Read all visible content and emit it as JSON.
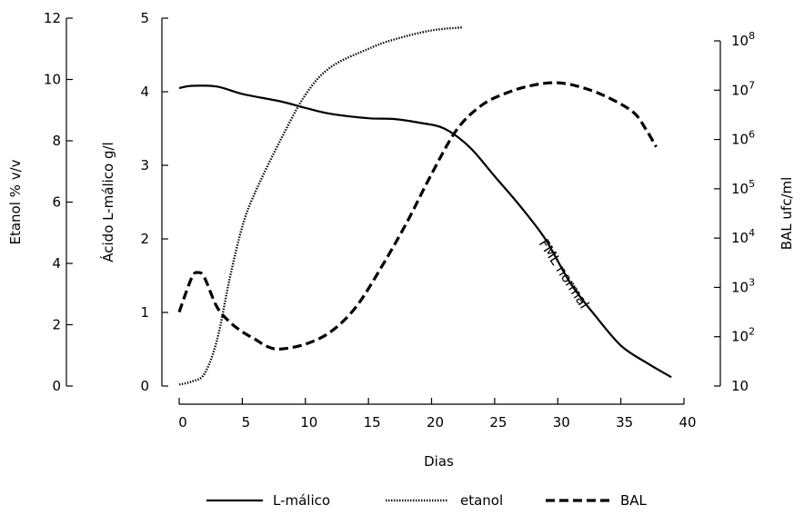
{
  "chart_data": {
    "type": "line",
    "xlabel": "Dias",
    "x_ticks": [
      0,
      5,
      10,
      15,
      20,
      25,
      30,
      35,
      40
    ],
    "xlim": [
      0,
      40
    ],
    "axes": {
      "etanol": {
        "label": "Etanol % v/v",
        "ylim": [
          0,
          12
        ],
        "ticks": [
          0,
          2,
          4,
          6,
          8,
          10,
          12
        ]
      },
      "malico": {
        "label": "Ácido L-málico g/l",
        "ylim": [
          0,
          5
        ],
        "ticks": [
          0,
          1,
          2,
          3,
          4,
          5
        ]
      },
      "bal": {
        "label": "BAL ufc/ml",
        "scale": "log",
        "ylim": [
          1,
          8
        ],
        "tick_labels": [
          {
            "base": "10",
            "exp": ""
          },
          {
            "base": "10",
            "exp": "2"
          },
          {
            "base": "10",
            "exp": "3"
          },
          {
            "base": "10",
            "exp": "4"
          },
          {
            "base": "10",
            "exp": "5"
          },
          {
            "base": "10",
            "exp": "6"
          },
          {
            "base": "10",
            "exp": "7"
          },
          {
            "base": "10",
            "exp": "8"
          }
        ]
      }
    },
    "series": [
      {
        "name": "L-málico",
        "axis": "malico",
        "style": "solid",
        "x": [
          0,
          1,
          3,
          5,
          8,
          10,
          12,
          15,
          17,
          19,
          21,
          23,
          25,
          27,
          29,
          31,
          33,
          35,
          37,
          39
        ],
        "y": [
          4.05,
          4.08,
          4.07,
          3.97,
          3.87,
          3.78,
          3.7,
          3.64,
          3.63,
          3.58,
          3.5,
          3.25,
          2.85,
          2.45,
          2.0,
          1.4,
          0.95,
          0.55,
          0.32,
          0.12
        ]
      },
      {
        "name": "etanol",
        "axis": "etanol",
        "style": "dotted",
        "x": [
          0,
          1,
          2,
          3,
          4,
          5,
          6,
          8,
          10,
          12,
          15,
          17,
          20,
          22.5
        ],
        "y": [
          0.05,
          0.15,
          0.4,
          1.5,
          3.5,
          5.2,
          6.3,
          8.0,
          9.5,
          10.4,
          11.0,
          11.3,
          11.6,
          11.7
        ]
      },
      {
        "name": "BAL",
        "axis": "bal",
        "style": "dashed",
        "x": [
          0,
          1,
          1.5,
          2,
          3,
          4,
          5,
          6,
          7,
          8,
          10,
          12,
          14,
          16,
          18,
          20,
          22,
          24,
          26,
          28,
          30,
          32,
          34,
          36,
          37,
          37.8
        ],
        "y": [
          2.5,
          3.2,
          3.3,
          3.2,
          2.6,
          2.3,
          2.1,
          1.95,
          1.8,
          1.75,
          1.85,
          2.1,
          2.6,
          3.4,
          4.3,
          5.3,
          6.2,
          6.7,
          6.95,
          7.1,
          7.15,
          7.05,
          6.85,
          6.55,
          6.2,
          5.85
        ]
      }
    ],
    "legend": {
      "position": "bottom-center",
      "entries": [
        "L-málico",
        "etanol",
        "BAL"
      ]
    },
    "annotation": {
      "text": "FML normal",
      "x": 31,
      "y_malico": 1.35
    },
    "grid": false
  }
}
